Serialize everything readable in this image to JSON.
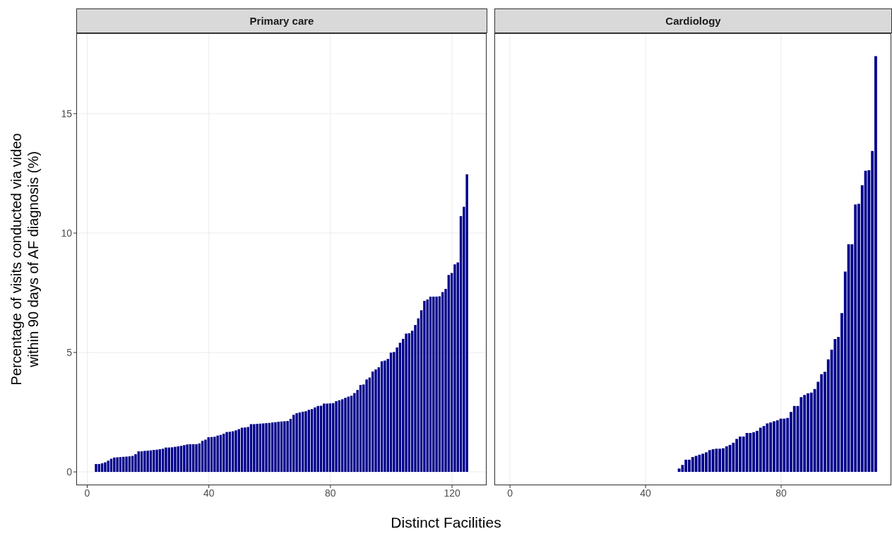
{
  "chart_data": [
    {
      "type": "bar",
      "title": "Primary care",
      "xlabel": "Distinct Facilities",
      "ylabel": "Percentage of visits conducted via video\nwithin 90 days of AF diagnosis (%)",
      "color": "#00008b",
      "grid": true,
      "xlim": [
        -3.6,
        131.6
      ],
      "xticks": [
        0,
        40,
        80,
        120
      ],
      "ylim": [
        -0.56,
        18.37
      ],
      "yticks": [
        0,
        5,
        10,
        15
      ],
      "x": [
        3,
        4,
        5,
        6,
        7,
        8,
        9,
        10,
        11,
        12,
        13,
        14,
        15,
        16,
        17,
        18,
        19,
        20,
        21,
        22,
        23,
        24,
        25,
        26,
        27,
        28,
        29,
        30,
        31,
        32,
        33,
        34,
        35,
        36,
        37,
        38,
        39,
        40,
        41,
        42,
        43,
        44,
        45,
        46,
        47,
        48,
        49,
        50,
        51,
        52,
        53,
        54,
        55,
        56,
        57,
        58,
        59,
        60,
        61,
        62,
        63,
        64,
        65,
        66,
        67,
        68,
        69,
        70,
        71,
        72,
        73,
        74,
        75,
        76,
        77,
        78,
        79,
        80,
        81,
        82,
        83,
        84,
        85,
        86,
        87,
        88,
        89,
        90,
        91,
        92,
        93,
        94,
        95,
        96,
        97,
        98,
        99,
        100,
        101,
        102,
        103,
        104,
        105,
        106,
        107,
        108,
        109,
        110,
        111,
        112,
        113,
        114,
        115,
        116,
        117,
        118,
        119,
        120,
        121,
        122,
        123,
        124,
        125
      ],
      "values": [
        0.33,
        0.33,
        0.36,
        0.4,
        0.47,
        0.55,
        0.6,
        0.61,
        0.62,
        0.63,
        0.64,
        0.65,
        0.67,
        0.74,
        0.86,
        0.86,
        0.88,
        0.89,
        0.9,
        0.92,
        0.93,
        0.95,
        0.97,
        1.02,
        1.02,
        1.03,
        1.05,
        1.07,
        1.09,
        1.12,
        1.15,
        1.16,
        1.16,
        1.16,
        1.19,
        1.3,
        1.35,
        1.45,
        1.46,
        1.47,
        1.52,
        1.55,
        1.6,
        1.67,
        1.68,
        1.7,
        1.74,
        1.79,
        1.85,
        1.86,
        1.88,
        2.0,
        2.0,
        2.01,
        2.02,
        2.03,
        2.04,
        2.05,
        2.07,
        2.08,
        2.1,
        2.11,
        2.12,
        2.13,
        2.22,
        2.39,
        2.46,
        2.49,
        2.52,
        2.54,
        2.6,
        2.63,
        2.7,
        2.76,
        2.77,
        2.86,
        2.86,
        2.87,
        2.88,
        2.96,
        3.0,
        3.04,
        3.1,
        3.15,
        3.19,
        3.3,
        3.43,
        3.64,
        3.66,
        3.87,
        3.95,
        4.2,
        4.29,
        4.38,
        4.63,
        4.66,
        4.73,
        4.99,
        5.02,
        5.21,
        5.41,
        5.57,
        5.79,
        5.81,
        5.91,
        6.15,
        6.43,
        6.77,
        7.16,
        7.22,
        7.34,
        7.34,
        7.34,
        7.35,
        7.53,
        7.66,
        8.25,
        8.33,
        8.69,
        8.77,
        10.71,
        11.1,
        12.46
      ]
    },
    {
      "type": "bar",
      "title": "Cardiology",
      "color": "#00008b",
      "grid": true,
      "tick_labels": "x",
      "xlim": [
        -4.6,
        112.7
      ],
      "xticks": [
        0,
        40,
        80
      ],
      "ylim": [
        -0.56,
        18.37
      ],
      "yticks": [
        0,
        5,
        10,
        15
      ],
      "x": [
        50,
        51,
        52,
        53,
        54,
        55,
        56,
        57,
        58,
        59,
        60,
        61,
        62,
        63,
        64,
        65,
        66,
        67,
        68,
        69,
        70,
        71,
        72,
        73,
        74,
        75,
        76,
        77,
        78,
        79,
        80,
        81,
        82,
        83,
        84,
        85,
        86,
        87,
        88,
        89,
        90,
        91,
        92,
        93,
        94,
        95,
        96,
        97,
        98,
        99,
        100,
        101,
        102,
        103,
        104,
        105,
        106,
        107,
        108
      ],
      "values": [
        0.14,
        0.29,
        0.51,
        0.51,
        0.62,
        0.67,
        0.72,
        0.76,
        0.82,
        0.91,
        0.95,
        0.97,
        0.97,
        0.99,
        1.07,
        1.13,
        1.22,
        1.38,
        1.48,
        1.48,
        1.63,
        1.63,
        1.66,
        1.72,
        1.85,
        1.92,
        2.03,
        2.07,
        2.12,
        2.16,
        2.23,
        2.23,
        2.26,
        2.51,
        2.76,
        2.76,
        3.13,
        3.22,
        3.29,
        3.32,
        3.47,
        3.77,
        4.09,
        4.19,
        4.71,
        5.12,
        5.56,
        5.65,
        6.65,
        8.39,
        9.53,
        9.53,
        11.2,
        11.23,
        12.0,
        12.61,
        12.63,
        13.44,
        17.41
      ]
    }
  ]
}
